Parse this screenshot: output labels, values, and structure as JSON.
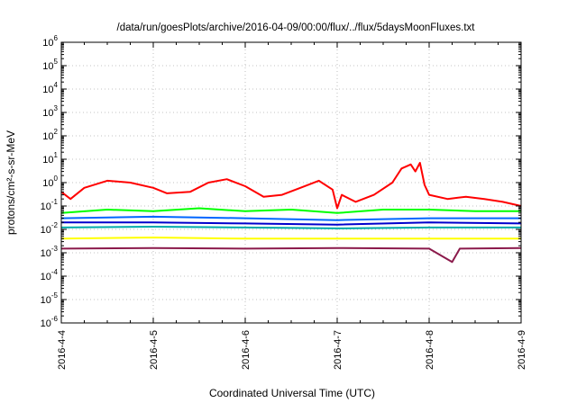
{
  "chart_data": {
    "type": "line",
    "title": "/data/run/goesPlots/archive/2016-04-09/00:00/flux/../flux/5daysMoonFluxes.txt",
    "xlabel": "Coordinated Universal Time (UTC)",
    "ylabel": "protons/cm²-s-sr-MeV",
    "x_ticks": [
      "2016-4-4",
      "2016-4-5",
      "2016-4-6",
      "2016-4-7",
      "2016-4-8",
      "2016-4-9"
    ],
    "xlim": [
      "2016-04-04T00:00",
      "2016-04-09T00:00"
    ],
    "y_scale": "log",
    "ylim": [
      1e-06,
      1000000.0
    ],
    "y_ticks": [
      {
        "base": "10",
        "exp": "-6"
      },
      {
        "base": "10",
        "exp": "-5"
      },
      {
        "base": "10",
        "exp": "-4"
      },
      {
        "base": "10",
        "exp": "-3"
      },
      {
        "base": "10",
        "exp": "-2"
      },
      {
        "base": "10",
        "exp": "-1"
      },
      {
        "base": "10",
        "exp": "0"
      },
      {
        "base": "10",
        "exp": "1"
      },
      {
        "base": "10",
        "exp": "2"
      },
      {
        "base": "10",
        "exp": "3"
      },
      {
        "base": "10",
        "exp": "4"
      },
      {
        "base": "10",
        "exp": "5"
      },
      {
        "base": "10",
        "exp": "6"
      }
    ],
    "grid": true,
    "series": [
      {
        "color": "#ff0000",
        "values": [
          {
            "x": "2016-04-04T00:00",
            "y": 0.4
          },
          {
            "x": "2016-04-04T02:24",
            "y": 0.2
          },
          {
            "x": "2016-04-04T06:00",
            "y": 0.6
          },
          {
            "x": "2016-04-04T12:00",
            "y": 1.2
          },
          {
            "x": "2016-04-04T18:00",
            "y": 1.0
          },
          {
            "x": "2016-04-05T00:00",
            "y": 0.6
          },
          {
            "x": "2016-04-05T03:36",
            "y": 0.35
          },
          {
            "x": "2016-04-05T09:36",
            "y": 0.4
          },
          {
            "x": "2016-04-05T14:24",
            "y": 1.0
          },
          {
            "x": "2016-04-05T19:12",
            "y": 1.4
          },
          {
            "x": "2016-04-06T00:00",
            "y": 0.7
          },
          {
            "x": "2016-04-06T04:48",
            "y": 0.25
          },
          {
            "x": "2016-04-06T09:36",
            "y": 0.3
          },
          {
            "x": "2016-04-06T14:24",
            "y": 0.6
          },
          {
            "x": "2016-04-06T19:12",
            "y": 1.2
          },
          {
            "x": "2016-04-06T22:48",
            "y": 0.5
          },
          {
            "x": "2016-04-07T00:00",
            "y": 0.08
          },
          {
            "x": "2016-04-07T01:12",
            "y": 0.3
          },
          {
            "x": "2016-04-07T04:48",
            "y": 0.15
          },
          {
            "x": "2016-04-07T09:36",
            "y": 0.3
          },
          {
            "x": "2016-04-07T14:24",
            "y": 1.0
          },
          {
            "x": "2016-04-07T16:48",
            "y": 4.0
          },
          {
            "x": "2016-04-07T19:12",
            "y": 6.0
          },
          {
            "x": "2016-04-07T20:24",
            "y": 3.0
          },
          {
            "x": "2016-04-07T21:36",
            "y": 7.0
          },
          {
            "x": "2016-04-07T22:48",
            "y": 0.8
          },
          {
            "x": "2016-04-08T00:00",
            "y": 0.3
          },
          {
            "x": "2016-04-08T04:48",
            "y": 0.2
          },
          {
            "x": "2016-04-08T09:36",
            "y": 0.25
          },
          {
            "x": "2016-04-08T14:24",
            "y": 0.2
          },
          {
            "x": "2016-04-08T19:12",
            "y": 0.15
          },
          {
            "x": "2016-04-09T00:00",
            "y": 0.1
          }
        ]
      },
      {
        "color": "#00ff00",
        "values": [
          {
            "x": "2016-04-04T00:00",
            "y": 0.05
          },
          {
            "x": "2016-04-04T12:00",
            "y": 0.07
          },
          {
            "x": "2016-04-05T00:00",
            "y": 0.06
          },
          {
            "x": "2016-04-05T12:00",
            "y": 0.08
          },
          {
            "x": "2016-04-06T00:00",
            "y": 0.06
          },
          {
            "x": "2016-04-06T12:00",
            "y": 0.07
          },
          {
            "x": "2016-04-07T00:00",
            "y": 0.05
          },
          {
            "x": "2016-04-07T12:00",
            "y": 0.07
          },
          {
            "x": "2016-04-08T00:00",
            "y": 0.07
          },
          {
            "x": "2016-04-08T12:00",
            "y": 0.06
          },
          {
            "x": "2016-04-09T00:00",
            "y": 0.06
          }
        ]
      },
      {
        "color": "#0066ff",
        "values": [
          {
            "x": "2016-04-04T00:00",
            "y": 0.03
          },
          {
            "x": "2016-04-05T00:00",
            "y": 0.035
          },
          {
            "x": "2016-04-06T00:00",
            "y": 0.03
          },
          {
            "x": "2016-04-07T00:00",
            "y": 0.025
          },
          {
            "x": "2016-04-08T00:00",
            "y": 0.03
          },
          {
            "x": "2016-04-09T00:00",
            "y": 0.03
          }
        ]
      },
      {
        "color": "#0000cc",
        "values": [
          {
            "x": "2016-04-04T00:00",
            "y": 0.02
          },
          {
            "x": "2016-04-05T00:00",
            "y": 0.02
          },
          {
            "x": "2016-04-06T00:00",
            "y": 0.018
          },
          {
            "x": "2016-04-07T00:00",
            "y": 0.016
          },
          {
            "x": "2016-04-08T00:00",
            "y": 0.02
          },
          {
            "x": "2016-04-09T00:00",
            "y": 0.018
          }
        ]
      },
      {
        "color": "#00aaaa",
        "values": [
          {
            "x": "2016-04-04T00:00",
            "y": 0.012
          },
          {
            "x": "2016-04-05T00:00",
            "y": 0.013
          },
          {
            "x": "2016-04-06T00:00",
            "y": 0.012
          },
          {
            "x": "2016-04-07T00:00",
            "y": 0.011
          },
          {
            "x": "2016-04-08T00:00",
            "y": 0.012
          },
          {
            "x": "2016-04-09T00:00",
            "y": 0.012
          }
        ]
      },
      {
        "color": "#ffff00",
        "values": [
          {
            "x": "2016-04-04T00:00",
            "y": 0.004
          },
          {
            "x": "2016-04-05T00:00",
            "y": 0.0045
          },
          {
            "x": "2016-04-06T00:00",
            "y": 0.004
          },
          {
            "x": "2016-04-07T00:00",
            "y": 0.004
          },
          {
            "x": "2016-04-08T00:00",
            "y": 0.004
          },
          {
            "x": "2016-04-09T00:00",
            "y": 0.004
          }
        ]
      },
      {
        "color": "#8b1a4b",
        "values": [
          {
            "x": "2016-04-04T00:00",
            "y": 0.0015
          },
          {
            "x": "2016-04-05T00:00",
            "y": 0.0016
          },
          {
            "x": "2016-04-06T00:00",
            "y": 0.0015
          },
          {
            "x": "2016-04-07T00:00",
            "y": 0.0016
          },
          {
            "x": "2016-04-08T00:00",
            "y": 0.0015
          },
          {
            "x": "2016-04-08T06:00",
            "y": 0.0004
          },
          {
            "x": "2016-04-08T08:00",
            "y": 0.0015
          },
          {
            "x": "2016-04-09T00:00",
            "y": 0.0016
          }
        ]
      }
    ]
  }
}
